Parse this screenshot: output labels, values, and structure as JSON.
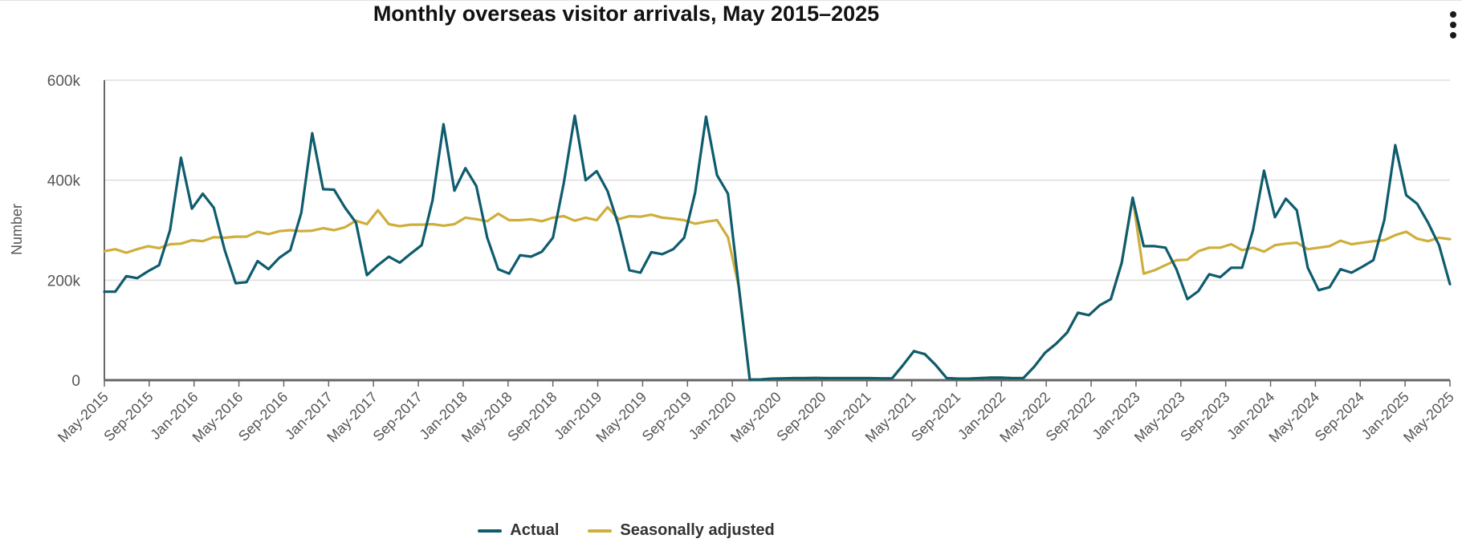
{
  "chart_data": {
    "type": "line",
    "title": "Monthly overseas visitor arrivals, May 2015–2025",
    "xlabel": "",
    "ylabel": "Number",
    "ylim": [
      0,
      600000
    ],
    "y_ticks": [
      0,
      200000,
      400000,
      600000
    ],
    "y_tick_labels": [
      "0",
      "200k",
      "400k",
      "600k"
    ],
    "x_tick_labels": [
      "May-2015",
      "Sep-2015",
      "Jan-2016",
      "May-2016",
      "Sep-2016",
      "Jan-2017",
      "May-2017",
      "Sep-2017",
      "Jan-2018",
      "May-2018",
      "Sep-2018",
      "Jan-2019",
      "May-2019",
      "Sep-2019",
      "Jan-2020",
      "May-2020",
      "Sep-2020",
      "Jan-2021",
      "May-2021",
      "Sep-2021",
      "Jan-2022",
      "May-2022",
      "Sep-2022",
      "Jan-2023",
      "May-2023",
      "Sep-2023",
      "Jan-2024",
      "May-2024",
      "Sep-2024",
      "Jan-2025",
      "May-2025"
    ],
    "x_start": "May-2015",
    "x_end": "May-2025",
    "grid": true,
    "legend_position": "bottom-center",
    "series": [
      {
        "name": "Actual",
        "color": "#0e5c6e",
        "values": [
          177000,
          177000,
          208000,
          204000,
          218000,
          230000,
          300000,
          445000,
          343000,
          373000,
          345000,
          260000,
          194000,
          196000,
          238000,
          222000,
          245000,
          260000,
          335000,
          494000,
          382000,
          381000,
          345000,
          315000,
          210000,
          230000,
          247000,
          235000,
          253000,
          270000,
          360000,
          512000,
          379000,
          424000,
          388000,
          285000,
          222000,
          213000,
          250000,
          247000,
          257000,
          285000,
          395000,
          529000,
          400000,
          418000,
          378000,
          310000,
          220000,
          215000,
          256000,
          252000,
          262000,
          285000,
          375000,
          527000,
          410000,
          373000,
          186000,
          1000,
          1500,
          3000,
          3500,
          4000,
          4000,
          4500,
          4000,
          4000,
          4000,
          4000,
          4000,
          3500,
          3500,
          30000,
          58000,
          52000,
          30000,
          4000,
          3000,
          3000,
          4000,
          5000,
          5000,
          4000,
          4000,
          27000,
          55000,
          73000,
          95000,
          135000,
          130000,
          150000,
          162000,
          235000,
          365000,
          268000,
          268000,
          265000,
          222000,
          162000,
          178000,
          212000,
          206000,
          225000,
          225000,
          300000,
          419000,
          326000,
          363000,
          340000,
          225000,
          180000,
          186000,
          222000,
          215000,
          227000,
          240000,
          320000,
          470000,
          370000,
          353000,
          315000,
          270000,
          192000
        ]
      },
      {
        "name": "Seasonally adjusted",
        "color": "#cfae3b",
        "values": [
          258000,
          262000,
          255000,
          262000,
          268000,
          264000,
          272000,
          273000,
          280000,
          278000,
          286000,
          285000,
          287000,
          287000,
          297000,
          292000,
          298000,
          300000,
          298000,
          299000,
          304000,
          300000,
          306000,
          319000,
          312000,
          340000,
          312000,
          308000,
          311000,
          311000,
          312000,
          309000,
          312000,
          325000,
          322000,
          318000,
          333000,
          320000,
          320000,
          322000,
          318000,
          325000,
          328000,
          319000,
          325000,
          320000,
          346000,
          322000,
          328000,
          327000,
          331000,
          325000,
          323000,
          320000,
          313000,
          317000,
          320000,
          286000,
          186000,
          1000,
          1500,
          3000,
          3500,
          4000,
          4000,
          4500,
          4000,
          4000,
          4000,
          4000,
          4000,
          3500,
          3500,
          30000,
          58000,
          52000,
          30000,
          4000,
          3000,
          3000,
          4000,
          5000,
          5000,
          4000,
          4000,
          27000,
          55000,
          73000,
          95000,
          135000,
          130000,
          150000,
          162000,
          235000,
          365000,
          213000,
          220000,
          230000,
          240000,
          241000,
          258000,
          265000,
          265000,
          272000,
          260000,
          265000,
          257000,
          270000,
          273000,
          275000,
          262000,
          265000,
          268000,
          279000,
          272000,
          275000,
          278000,
          280000,
          290000,
          297000,
          283000,
          278000,
          285000,
          282000
        ]
      }
    ]
  },
  "header": {
    "menu_icon": "more-vertical-icon"
  }
}
